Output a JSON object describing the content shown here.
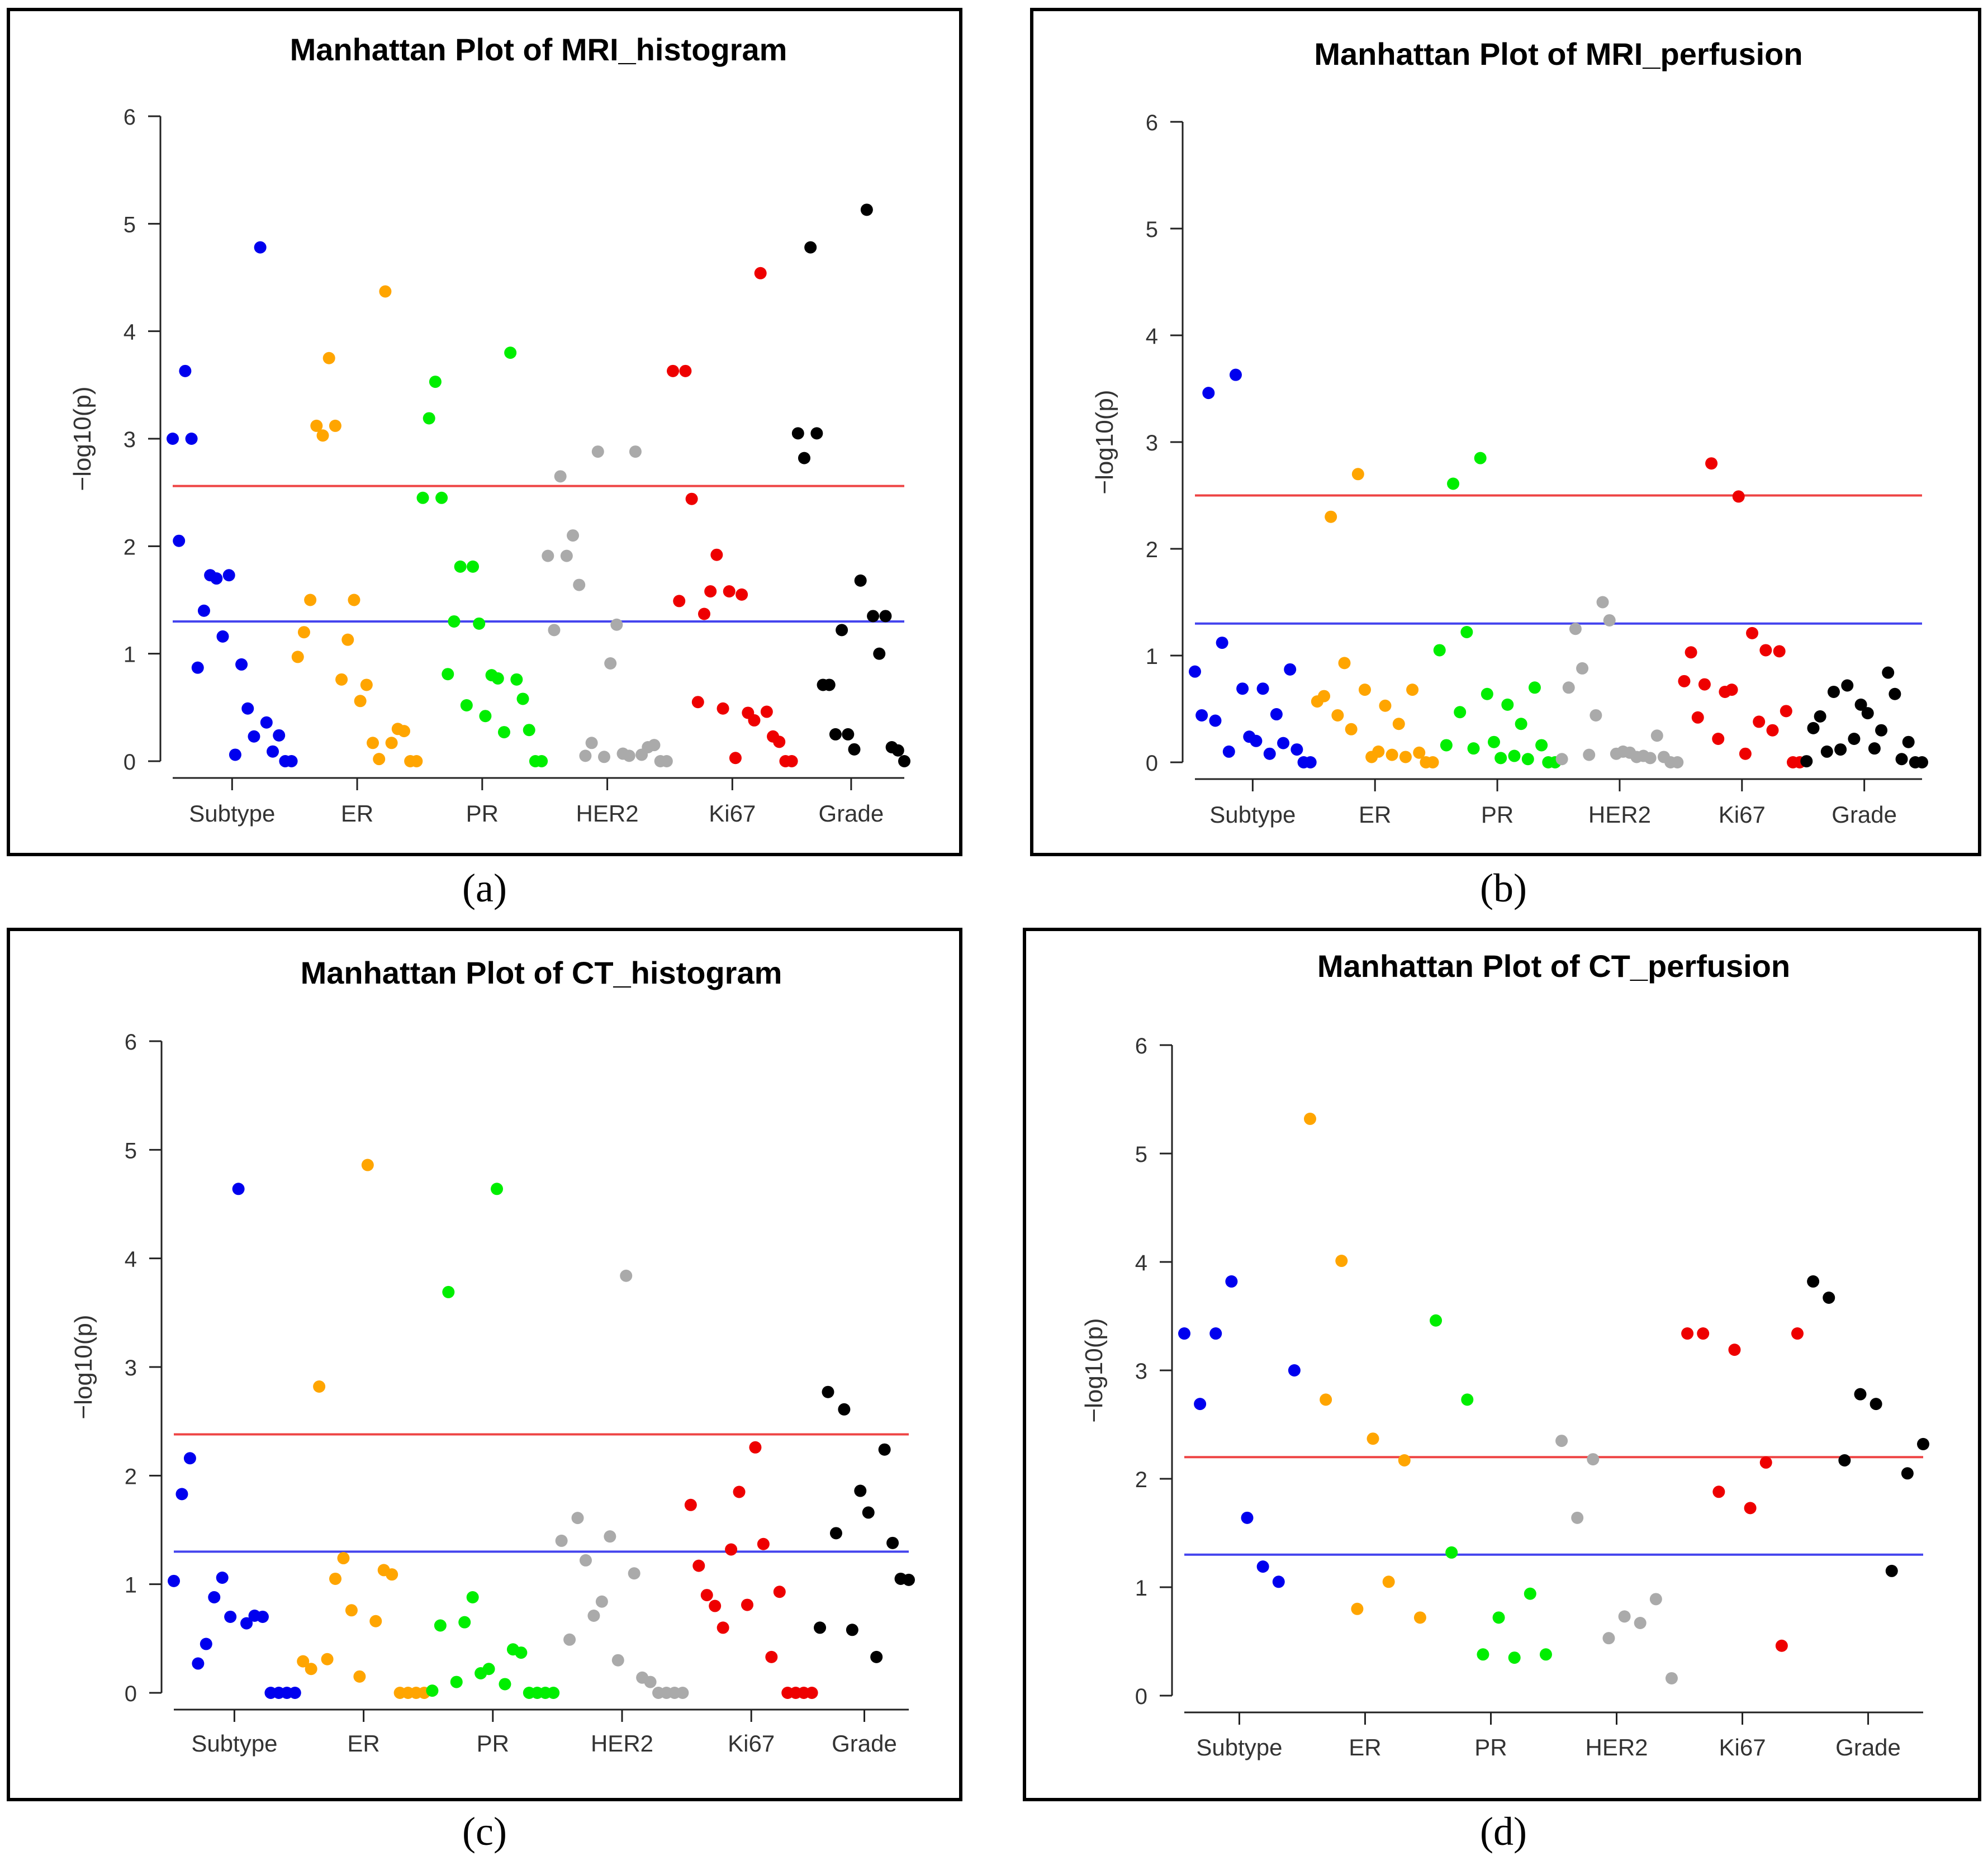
{
  "figure": {
    "captions": [
      "(a)",
      "(b)",
      "(c)",
      "(d)"
    ]
  },
  "colors": {
    "Subtype": "#0000ee",
    "ER": "#ffa500",
    "PR": "#00ee00",
    "HER2": "#aaaaaa",
    "Ki67": "#ee0000",
    "Grade": "#000000",
    "red_line": "#ee4444",
    "blue_line": "#4444ee"
  },
  "chart_data": [
    {
      "type": "scatter",
      "title": "Manhattan Plot of MRI_histogram",
      "ylabel": "−log10(p)",
      "categories": [
        "Subtype",
        "ER",
        "PR",
        "HER2",
        "Ki67",
        "Grade"
      ],
      "ylim": [
        0,
        6
      ],
      "yticks": [
        "0",
        "1",
        "2",
        "3",
        "4",
        "5",
        "6"
      ],
      "thresholds": {
        "red": 2.56,
        "blue": 1.3
      },
      "series": [
        {
          "name": "Subtype",
          "x": [
            1,
            2,
            3,
            4,
            5,
            6,
            7,
            8,
            9,
            10,
            11,
            12,
            13,
            14,
            15,
            16,
            17,
            18,
            19,
            20
          ],
          "y": [
            3.0,
            2.05,
            3.63,
            3.0,
            0.87,
            1.4,
            1.73,
            1.7,
            1.16,
            1.73,
            0.06,
            0.9,
            0.49,
            0.23,
            4.78,
            0.36,
            0.09,
            0.24,
            0,
            0
          ]
        },
        {
          "name": "ER",
          "x": [
            21,
            22,
            23,
            24,
            25,
            26,
            27,
            28,
            29,
            30,
            31,
            32,
            33,
            34,
            35,
            36,
            37,
            38,
            39,
            40
          ],
          "y": [
            0.97,
            1.2,
            1.5,
            3.12,
            3.03,
            3.75,
            3.12,
            0.76,
            1.13,
            1.5,
            0.56,
            0.71,
            0.17,
            0.02,
            4.37,
            0.17,
            0.3,
            0.28,
            0,
            0
          ]
        },
        {
          "name": "PR",
          "x": [
            41,
            42,
            43,
            44,
            45,
            46,
            47,
            48,
            49,
            50,
            51,
            52,
            53,
            54,
            55,
            56,
            57,
            58,
            59,
            60
          ],
          "y": [
            2.45,
            3.19,
            3.53,
            2.45,
            0.81,
            1.3,
            1.81,
            0.52,
            1.81,
            1.28,
            0.42,
            0.8,
            0.77,
            0.27,
            3.8,
            0.76,
            0.58,
            0.29,
            0,
            0
          ]
        },
        {
          "name": "HER2",
          "x": [
            61,
            62,
            63,
            64,
            65,
            66,
            67,
            68,
            69,
            70,
            71,
            72,
            73,
            74,
            75,
            76,
            77,
            78,
            79,
            80
          ],
          "y": [
            1.91,
            1.22,
            2.65,
            1.91,
            2.1,
            1.64,
            0.05,
            0.17,
            2.88,
            0.04,
            0.91,
            1.27,
            0.07,
            0.05,
            2.88,
            0.06,
            0.13,
            0.15,
            0,
            0
          ]
        },
        {
          "name": "Ki67",
          "x": [
            81,
            82,
            83,
            84,
            85,
            86,
            87,
            88,
            89,
            90,
            91,
            92,
            93,
            94,
            95,
            96,
            97,
            98,
            99,
            100
          ],
          "y": [
            3.63,
            1.49,
            3.63,
            2.44,
            0.55,
            1.37,
            1.58,
            1.92,
            0.49,
            1.58,
            0.03,
            1.55,
            0.45,
            0.38,
            4.54,
            0.46,
            0.23,
            0.18,
            0,
            0
          ]
        },
        {
          "name": "Grade",
          "x": [
            101,
            102,
            103,
            104,
            105,
            106,
            107,
            108,
            109,
            110,
            111,
            112,
            113,
            114,
            115,
            116,
            117,
            118
          ],
          "y": [
            3.05,
            2.82,
            4.78,
            3.05,
            0.71,
            0.71,
            0.25,
            1.22,
            0.25,
            0.11,
            1.68,
            5.13,
            1.35,
            1.0,
            1.35,
            0.13,
            0.1,
            0
          ]
        }
      ]
    },
    {
      "type": "scatter",
      "title": "Manhattan Plot of MRI_perfusion",
      "ylabel": "−log10(p)",
      "categories": [
        "Subtype",
        "ER",
        "PR",
        "HER2",
        "Ki67",
        "Grade"
      ],
      "ylim": [
        0,
        6
      ],
      "yticks": [
        "0",
        "1",
        "2",
        "3",
        "4",
        "5",
        "6"
      ],
      "thresholds": {
        "red": 2.5,
        "blue": 1.3
      },
      "series": [
        {
          "name": "Subtype",
          "x": [
            1,
            2,
            3,
            4,
            5,
            6,
            7,
            8,
            9,
            10,
            11,
            12,
            13,
            14,
            15,
            16,
            17,
            18
          ],
          "y": [
            0.85,
            0.44,
            3.46,
            0.39,
            1.12,
            0.1,
            3.63,
            0.69,
            0.24,
            0.2,
            0.69,
            0.08,
            0.45,
            0.18,
            0.87,
            0.12,
            0,
            0
          ]
        },
        {
          "name": "ER",
          "x": [
            19,
            20,
            21,
            22,
            23,
            24,
            25,
            26,
            27,
            28,
            29,
            30,
            31,
            32,
            33,
            34,
            35,
            36
          ],
          "y": [
            0.57,
            0.62,
            2.3,
            0.44,
            0.93,
            0.31,
            2.7,
            0.68,
            0.05,
            0.1,
            0.53,
            0.07,
            0.36,
            0.05,
            0.68,
            0.09,
            0,
            0
          ]
        },
        {
          "name": "PR",
          "x": [
            37,
            38,
            39,
            40,
            41,
            42,
            43,
            44,
            45,
            46,
            47,
            48,
            49,
            50,
            51,
            52,
            53,
            54
          ],
          "y": [
            1.05,
            0.16,
            2.61,
            0.47,
            1.22,
            0.13,
            2.85,
            0.64,
            0.19,
            0.04,
            0.54,
            0.06,
            0.36,
            0.03,
            0.7,
            0.16,
            0,
            0
          ]
        },
        {
          "name": "HER2",
          "x": [
            55,
            56,
            57,
            58,
            59,
            60,
            61,
            62,
            63,
            64,
            65,
            66,
            67,
            68,
            69,
            70,
            71,
            72
          ],
          "y": [
            0.03,
            0.7,
            1.25,
            0.88,
            0.07,
            0.44,
            1.5,
            1.33,
            0.08,
            0.1,
            0.09,
            0.05,
            0.06,
            0.04,
            0.25,
            0.05,
            0,
            0
          ]
        },
        {
          "name": "Ki67",
          "x": [
            73,
            74,
            75,
            76,
            77,
            78,
            79,
            80,
            81,
            82,
            83,
            84,
            85,
            86,
            87,
            88,
            89,
            90
          ],
          "y": [
            0.76,
            1.03,
            0.42,
            0.73,
            2.8,
            0.22,
            0.66,
            0.68,
            2.49,
            0.08,
            1.21,
            0.38,
            1.05,
            0.3,
            1.04,
            0.48,
            0,
            0
          ]
        },
        {
          "name": "Grade",
          "x": [
            91,
            92,
            93,
            94,
            95,
            96,
            97,
            98,
            99,
            100,
            101,
            102,
            103,
            104,
            105,
            106,
            107,
            108
          ],
          "y": [
            0.01,
            0.32,
            0.43,
            0.1,
            0.66,
            0.12,
            0.72,
            0.22,
            0.54,
            0.46,
            0.13,
            0.3,
            0.84,
            0.64,
            0.03,
            0.19,
            0,
            0
          ]
        }
      ]
    },
    {
      "type": "scatter",
      "title": "Manhattan Plot of CT_histogram",
      "ylabel": "−log10(p)",
      "categories": [
        "Subtype",
        "ER",
        "PR",
        "HER2",
        "Ki67",
        "Grade"
      ],
      "ylim": [
        0,
        6
      ],
      "yticks": [
        "0",
        "1",
        "2",
        "3",
        "4",
        "5",
        "6"
      ],
      "thresholds": {
        "red": 2.38,
        "blue": 1.3
      },
      "series": [
        {
          "name": "Subtype",
          "x": [
            1,
            2,
            3,
            4,
            5,
            6,
            7,
            8,
            9,
            10,
            11,
            12,
            13,
            14,
            15,
            16
          ],
          "y": [
            1.03,
            1.83,
            2.16,
            0.27,
            0.45,
            0.88,
            1.06,
            0.7,
            4.64,
            0.64,
            0.71,
            0.7,
            0,
            0,
            0,
            0
          ]
        },
        {
          "name": "ER",
          "x": [
            17,
            18,
            19,
            20,
            21,
            22,
            23,
            24,
            25,
            26,
            27,
            28,
            29,
            30,
            31,
            32
          ],
          "y": [
            0.29,
            0.22,
            2.82,
            0.31,
            1.05,
            1.24,
            0.76,
            0.15,
            4.86,
            0.66,
            1.13,
            1.09,
            0,
            0,
            0,
            0
          ]
        },
        {
          "name": "PR",
          "x": [
            33,
            34,
            35,
            36,
            37,
            38,
            39,
            40,
            41,
            42,
            43,
            44,
            45,
            46,
            47,
            48
          ],
          "y": [
            0.02,
            0.62,
            3.69,
            0.1,
            0.65,
            0.88,
            0.18,
            0.22,
            4.64,
            0.08,
            0.4,
            0.37,
            0,
            0,
            0,
            0
          ]
        },
        {
          "name": "HER2",
          "x": [
            49,
            50,
            51,
            52,
            53,
            54,
            55,
            56,
            57,
            58,
            59,
            60,
            61,
            62,
            63,
            64
          ],
          "y": [
            1.4,
            0.49,
            1.61,
            1.22,
            0.71,
            0.84,
            1.44,
            0.3,
            3.84,
            1.1,
            0.14,
            0.1,
            0,
            0,
            0,
            0
          ]
        },
        {
          "name": "Ki67",
          "x": [
            65,
            66,
            67,
            68,
            69,
            70,
            71,
            72,
            73,
            74,
            75,
            76,
            77,
            78,
            79,
            80
          ],
          "y": [
            1.73,
            1.17,
            0.9,
            0.8,
            0.6,
            1.32,
            1.85,
            0.81,
            2.26,
            1.37,
            0.33,
            0.93,
            0,
            0,
            0,
            0
          ]
        },
        {
          "name": "Grade",
          "x": [
            81,
            82,
            83,
            84,
            85,
            86,
            87,
            88,
            89,
            90,
            91,
            92
          ],
          "y": [
            0.6,
            2.77,
            1.47,
            2.61,
            0.58,
            1.86,
            1.66,
            0.33,
            2.24,
            1.38,
            1.05,
            1.04
          ]
        }
      ]
    },
    {
      "type": "scatter",
      "title": "Manhattan Plot of CT_perfusion",
      "ylabel": "−log10(p)",
      "categories": [
        "Subtype",
        "ER",
        "PR",
        "HER2",
        "Ki67",
        "Grade"
      ],
      "ylim": [
        0,
        6
      ],
      "yticks": [
        "0",
        "1",
        "2",
        "3",
        "4",
        "5",
        "6"
      ],
      "thresholds": {
        "red": 2.2,
        "blue": 1.3
      },
      "series": [
        {
          "name": "Subtype",
          "x": [
            1,
            2,
            3,
            4,
            5,
            6,
            7,
            8
          ],
          "y": [
            3.34,
            2.69,
            3.34,
            3.82,
            1.64,
            1.19,
            1.05,
            3.0
          ]
        },
        {
          "name": "ER",
          "x": [
            9,
            10,
            11,
            12,
            13,
            14,
            15,
            16
          ],
          "y": [
            5.32,
            2.73,
            4.01,
            0.8,
            2.37,
            1.05,
            2.17,
            0.72
          ]
        },
        {
          "name": "PR",
          "x": [
            17,
            18,
            19,
            20,
            21,
            22,
            23,
            24
          ],
          "y": [
            3.46,
            1.32,
            2.73,
            0.38,
            0.72,
            0.35,
            0.94,
            0.38
          ]
        },
        {
          "name": "HER2",
          "x": [
            25,
            26,
            27,
            28,
            29,
            30,
            31,
            32
          ],
          "y": [
            2.35,
            1.64,
            2.18,
            0.53,
            0.73,
            0.67,
            0.89,
            0.16
          ]
        },
        {
          "name": "Ki67",
          "x": [
            33,
            34,
            35,
            36,
            37,
            38,
            39,
            40
          ],
          "y": [
            3.34,
            3.34,
            1.88,
            3.19,
            1.73,
            2.15,
            0.46,
            3.34
          ]
        },
        {
          "name": "Grade",
          "x": [
            41,
            42,
            43,
            44,
            45,
            46,
            47,
            48
          ],
          "y": [
            3.82,
            3.67,
            2.17,
            2.78,
            2.69,
            1.15,
            2.05,
            2.32
          ]
        }
      ]
    }
  ]
}
